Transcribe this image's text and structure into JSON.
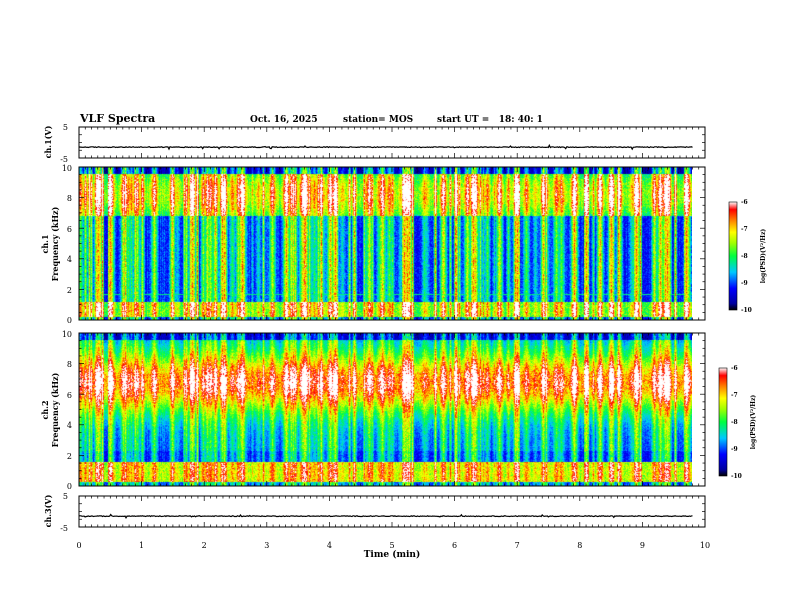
{
  "header": {
    "title": "VLF Spectra",
    "date": "Oct. 16, 2025",
    "station": "station= MOS",
    "start": "start UT =   18: 40: 1"
  },
  "chart_data": [
    {
      "type": "line",
      "name": "ch1-voltage",
      "ylabel": "ch.1(V)",
      "ylim": [
        -5,
        5
      ],
      "yticks": [
        "5",
        "-5"
      ],
      "baseline": -1.5,
      "x_extent": [
        0,
        9.8
      ]
    },
    {
      "type": "heatmap",
      "name": "ch1-spectrogram",
      "ylabel_line1": "ch.1",
      "ylabel_line2": "Frequency (kHz)",
      "ylim": [
        0,
        10
      ],
      "yticks": [
        "0",
        "2",
        "4",
        "6",
        "8",
        "10"
      ],
      "x_extent": [
        0,
        9.8
      ],
      "colorbar": {
        "label": "log(PSD)(V²/Hz)",
        "range": [
          -10,
          -6
        ],
        "ticks": [
          "-6",
          "-7",
          "-8",
          "-9",
          "-10"
        ]
      }
    },
    {
      "type": "heatmap",
      "name": "ch2-spectrogram",
      "ylabel_line1": "ch.2",
      "ylabel_line2": "Frequency (kHz)",
      "ylim": [
        0,
        10
      ],
      "yticks": [
        "0",
        "2",
        "4",
        "6",
        "8",
        "10"
      ],
      "x_extent": [
        0,
        9.8
      ],
      "colorbar": {
        "label": "log(PSD)(V²/Hz)",
        "range": [
          -10,
          -6
        ],
        "ticks": [
          "-6",
          "-7",
          "-8",
          "-9",
          "-10"
        ]
      }
    },
    {
      "type": "line",
      "name": "ch3-voltage",
      "ylabel": "ch.3(V)",
      "ylim": [
        -5,
        5
      ],
      "yticks": [
        "5",
        "-5"
      ],
      "baseline": -1.5,
      "x_extent": [
        0,
        9.8
      ]
    }
  ],
  "x_axis": {
    "label": "Time (min)",
    "range": [
      0,
      10
    ],
    "ticks": [
      "0",
      "1",
      "2",
      "3",
      "4",
      "5",
      "6",
      "7",
      "8",
      "9",
      "10"
    ]
  }
}
